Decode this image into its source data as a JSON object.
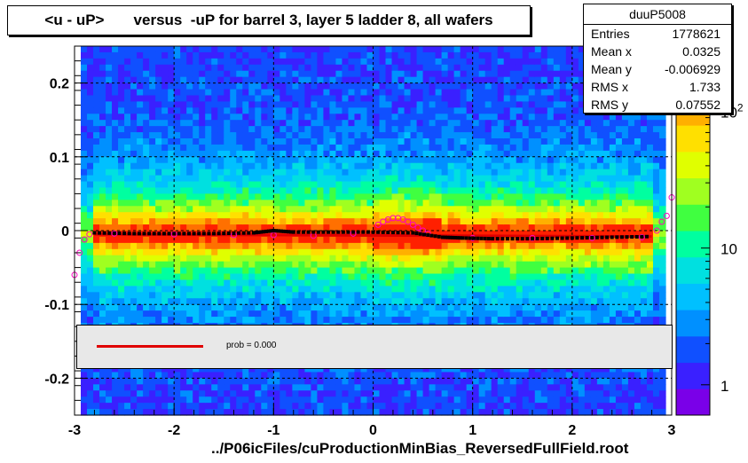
{
  "title": "<u - uP>       versus  -uP for barrel 3, layer 5 ladder 8, all wafers",
  "stats": {
    "name": "duuP5008",
    "rows": [
      {
        "label": "Entries",
        "value": "1778621"
      },
      {
        "label": "Mean x",
        "value": "0.0325"
      },
      {
        "label": "Mean y",
        "value": "-0.006929"
      },
      {
        "label": "RMS x",
        "value": "1.733"
      },
      {
        "label": "RMS y",
        "value": "0.07552"
      }
    ]
  },
  "legend": {
    "text": "prob = 0.000",
    "line_color": "#e00000"
  },
  "x_axis_label": "../P06icFiles/cuProductionMinBias_ReversedFullField.root",
  "chart_data": {
    "type": "heatmap",
    "xlim": [
      -3,
      3
    ],
    "ylim": [
      -0.25,
      0.25
    ],
    "x_ticks": [
      -3,
      -2,
      -1,
      0,
      1,
      2,
      3
    ],
    "x_tick_labels": [
      "-3",
      "-2",
      "-1",
      "0",
      "1",
      "2",
      "3"
    ],
    "y_ticks": [
      -0.2,
      -0.1,
      0,
      0.1,
      0.2
    ],
    "y_tick_labels": [
      "-0.2",
      "-0.1",
      "0",
      "0.1",
      "0.2"
    ],
    "grid": true,
    "colorbar": {
      "scale": "log",
      "range": [
        0.6,
        300
      ],
      "ticks": [
        1,
        10,
        100
      ],
      "tick_labels": [
        "1",
        "10",
        "10^2"
      ],
      "colors": [
        "#7a00e8",
        "#3a20ff",
        "#1050ff",
        "#0090ff",
        "#00c0ff",
        "#00e0e0",
        "#00ffa0",
        "#40ff40",
        "#a0ff20",
        "#e0ff00",
        "#ffe000",
        "#ffb000",
        "#ff7000",
        "#ff2000"
      ]
    },
    "profile_black": {
      "x": [
        -2.8,
        -2.4,
        -2.0,
        -1.6,
        -1.2,
        -1.0,
        -0.8,
        -0.4,
        0.0,
        0.4,
        0.7,
        0.9,
        1.2,
        1.6,
        2.0,
        2.4,
        2.8
      ],
      "y": [
        -0.003,
        -0.004,
        -0.004,
        -0.004,
        -0.003,
        0.0,
        -0.002,
        -0.002,
        -0.002,
        -0.003,
        -0.009,
        -0.01,
        -0.011,
        -0.011,
        -0.01,
        -0.009,
        -0.008
      ]
    },
    "profile_magenta": {
      "x": [
        -3.0,
        -2.95,
        -2.9,
        -2.85,
        -2.6,
        -2.0,
        -1.4,
        -1.0,
        -0.6,
        -0.2,
        0.05,
        0.1,
        0.15,
        0.2,
        0.25,
        0.3,
        0.35,
        0.4,
        0.45,
        0.5,
        0.55,
        1.0,
        1.6,
        2.2,
        2.7,
        2.85,
        2.9,
        2.95,
        3.0
      ],
      "y": [
        -0.06,
        -0.03,
        -0.012,
        -0.005,
        -0.004,
        -0.005,
        -0.006,
        -0.006,
        -0.007,
        -0.004,
        0.008,
        0.012,
        0.015,
        0.017,
        0.017,
        0.015,
        0.012,
        0.008,
        0.004,
        0.0,
        -0.004,
        -0.01,
        -0.01,
        -0.01,
        -0.009,
        0.0,
        0.012,
        0.02,
        0.045
      ]
    },
    "fit_line": {
      "x": [
        -2.8,
        2.8
      ],
      "y": [
        -0.005,
        -0.008
      ]
    }
  }
}
